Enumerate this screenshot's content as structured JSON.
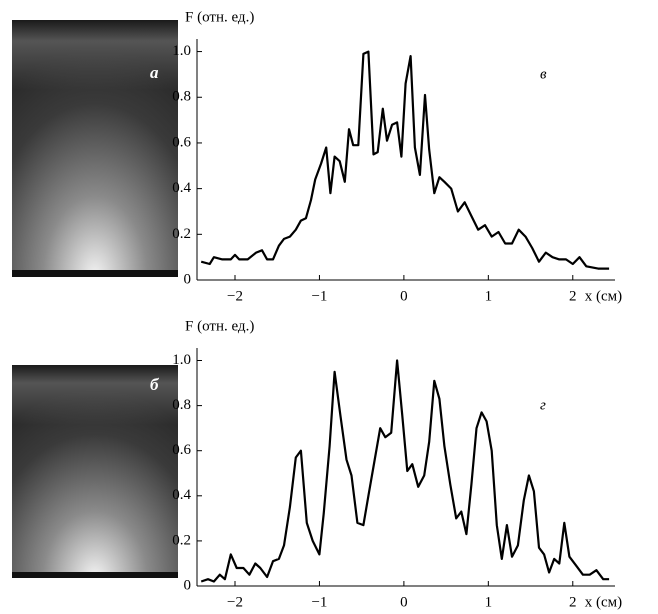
{
  "chart_data": [
    {
      "type": "line",
      "image_label": "а",
      "panel_label": "в",
      "y_label": "F (отн. ед.)",
      "x_label": "x (см)",
      "xlim": [
        -2.45,
        2.5
      ],
      "ylim": [
        0,
        1.02
      ],
      "xticks": [
        {
          "value": -2,
          "label": "−2"
        },
        {
          "value": -1,
          "label": "−1"
        },
        0,
        1,
        2
      ],
      "yticks": [
        0,
        0.2,
        0.4,
        0.6,
        0.8,
        {
          "value": 1,
          "label": "1.0"
        }
      ],
      "series": [
        {
          "color": "#000000",
          "x": [
            -2.4,
            -2.3,
            -2.25,
            -2.15,
            -2.05,
            -2.0,
            -1.95,
            -1.85,
            -1.75,
            -1.68,
            -1.62,
            -1.55,
            -1.48,
            -1.42,
            -1.35,
            -1.28,
            -1.22,
            -1.16,
            -1.1,
            -1.05,
            -0.98,
            -0.92,
            -0.87,
            -0.82,
            -0.76,
            -0.7,
            -0.65,
            -0.6,
            -0.54,
            -0.48,
            -0.42,
            -0.36,
            -0.31,
            -0.25,
            -0.2,
            -0.14,
            -0.08,
            -0.03,
            0.02,
            0.08,
            0.13,
            0.19,
            0.25,
            0.3,
            0.36,
            0.42,
            0.48,
            0.56,
            0.64,
            0.72,
            0.8,
            0.88,
            0.96,
            1.04,
            1.12,
            1.2,
            1.28,
            1.36,
            1.44,
            1.52,
            1.6,
            1.68,
            1.76,
            1.84,
            1.92,
            2.0,
            2.08,
            2.16,
            2.3,
            2.43
          ],
          "values": [
            0.08,
            0.07,
            0.1,
            0.09,
            0.09,
            0.11,
            0.09,
            0.09,
            0.12,
            0.13,
            0.09,
            0.09,
            0.15,
            0.18,
            0.19,
            0.22,
            0.26,
            0.27,
            0.35,
            0.44,
            0.51,
            0.58,
            0.38,
            0.54,
            0.52,
            0.43,
            0.66,
            0.59,
            0.59,
            0.99,
            1.0,
            0.55,
            0.56,
            0.75,
            0.61,
            0.68,
            0.69,
            0.54,
            0.86,
            0.98,
            0.58,
            0.46,
            0.81,
            0.57,
            0.38,
            0.45,
            0.43,
            0.4,
            0.3,
            0.34,
            0.28,
            0.22,
            0.24,
            0.19,
            0.21,
            0.16,
            0.16,
            0.22,
            0.19,
            0.14,
            0.08,
            0.12,
            0.1,
            0.09,
            0.09,
            0.07,
            0.1,
            0.06,
            0.05,
            0.05
          ]
        }
      ]
    },
    {
      "type": "line",
      "image_label": "б",
      "panel_label": "г",
      "y_label": "F (отн. ед.)",
      "x_label": "x (см)",
      "xlim": [
        -2.45,
        2.5
      ],
      "ylim": [
        0,
        1.02
      ],
      "xticks": [
        {
          "value": -2,
          "label": "−2"
        },
        {
          "value": -1,
          "label": "−1"
        },
        0,
        1,
        2
      ],
      "yticks": [
        0,
        0.2,
        0.4,
        0.6,
        0.8,
        {
          "value": 1,
          "label": "1.0"
        }
      ],
      "series": [
        {
          "color": "#000000",
          "x": [
            -2.4,
            -2.32,
            -2.25,
            -2.18,
            -2.12,
            -2.05,
            -1.98,
            -1.9,
            -1.83,
            -1.76,
            -1.7,
            -1.62,
            -1.55,
            -1.48,
            -1.42,
            -1.35,
            -1.28,
            -1.22,
            -1.15,
            -1.08,
            -1.0,
            -0.95,
            -0.88,
            -0.82,
            -0.75,
            -0.68,
            -0.62,
            -0.55,
            -0.48,
            -0.42,
            -0.35,
            -0.28,
            -0.22,
            -0.15,
            -0.08,
            -0.02,
            0.04,
            0.1,
            0.17,
            0.24,
            0.3,
            0.36,
            0.42,
            0.48,
            0.55,
            0.62,
            0.68,
            0.74,
            0.8,
            0.86,
            0.92,
            0.98,
            1.04,
            1.1,
            1.16,
            1.22,
            1.28,
            1.35,
            1.42,
            1.48,
            1.54,
            1.6,
            1.66,
            1.72,
            1.78,
            1.84,
            1.9,
            1.96,
            2.04,
            2.12,
            2.2,
            2.28,
            2.36,
            2.43
          ],
          "values": [
            0.02,
            0.03,
            0.02,
            0.05,
            0.03,
            0.14,
            0.08,
            0.08,
            0.05,
            0.1,
            0.08,
            0.04,
            0.11,
            0.12,
            0.18,
            0.35,
            0.57,
            0.6,
            0.28,
            0.2,
            0.14,
            0.32,
            0.62,
            0.95,
            0.75,
            0.56,
            0.49,
            0.28,
            0.27,
            0.4,
            0.55,
            0.7,
            0.66,
            0.68,
            1.0,
            0.76,
            0.51,
            0.54,
            0.44,
            0.49,
            0.64,
            0.91,
            0.83,
            0.62,
            0.45,
            0.3,
            0.33,
            0.23,
            0.45,
            0.7,
            0.77,
            0.73,
            0.6,
            0.27,
            0.12,
            0.27,
            0.13,
            0.18,
            0.38,
            0.49,
            0.42,
            0.17,
            0.14,
            0.06,
            0.12,
            0.1,
            0.28,
            0.13,
            0.09,
            0.05,
            0.05,
            0.07,
            0.03,
            0.03
          ]
        }
      ]
    }
  ]
}
